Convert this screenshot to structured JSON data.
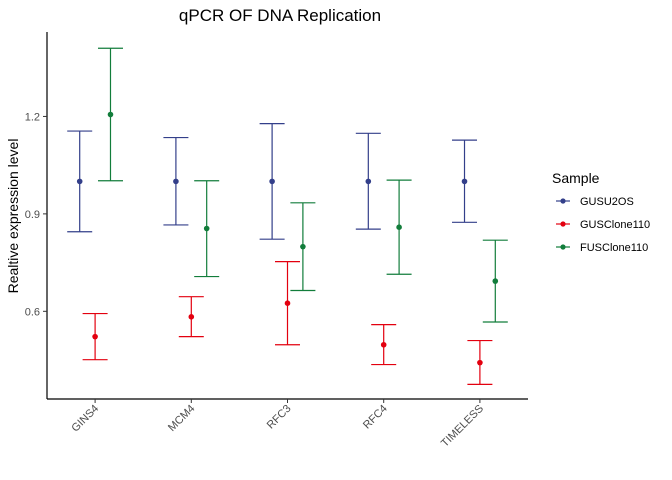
{
  "chart_data": {
    "type": "errorbar",
    "title": "qPCR OF DNA Replication",
    "xlabel": "",
    "ylabel": "Realtive expression level",
    "categories": [
      "GINS4",
      "MCM4",
      "RFC3",
      "RFC4",
      "TIMELESS"
    ],
    "ylim": [
      0.33,
      1.46
    ],
    "yticks": [
      0.6,
      0.9,
      1.2
    ],
    "ytick_labels": [
      "0.6",
      "0.9",
      "1.2"
    ],
    "grid": false,
    "legend_title": "Sample",
    "legend_position": "right",
    "series": [
      {
        "name": "GUSU2OS",
        "color": "#333f8a",
        "values": [
          1.0,
          1.0,
          1.0,
          1.0,
          1.0
        ],
        "lower": [
          0.845,
          0.866,
          0.822,
          0.853,
          0.874
        ],
        "upper": [
          1.155,
          1.135,
          1.178,
          1.148,
          1.127
        ]
      },
      {
        "name": "GUSClone110",
        "color": "#e3000f",
        "values": [
          0.522,
          0.583,
          0.625,
          0.497,
          0.442
        ],
        "lower": [
          0.451,
          0.522,
          0.497,
          0.436,
          0.375
        ],
        "upper": [
          0.593,
          0.645,
          0.753,
          0.559,
          0.51
        ]
      },
      {
        "name": "FUSClone110",
        "color": "#127d3b",
        "values": [
          1.206,
          0.855,
          0.799,
          0.859,
          0.693
        ],
        "lower": [
          1.002,
          0.707,
          0.664,
          0.714,
          0.567
        ],
        "upper": [
          1.41,
          1.002,
          0.934,
          1.004,
          0.819
        ]
      }
    ]
  }
}
